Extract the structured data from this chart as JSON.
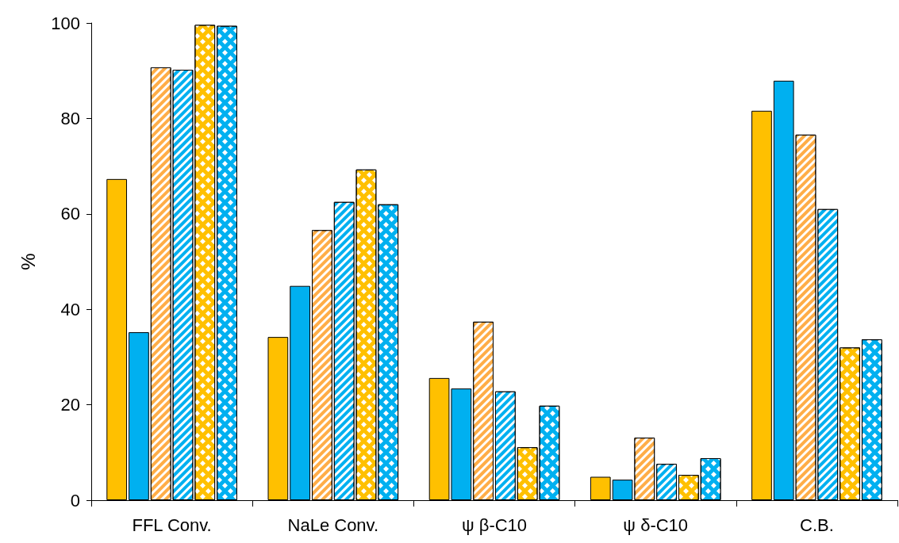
{
  "chart_data": {
    "type": "bar",
    "ylabel": "%",
    "categories": [
      "FFL Conv.",
      "NaLe Conv.",
      "ψ β-C10",
      "ψ δ-C10",
      "C.B."
    ],
    "ylim": [
      0,
      100
    ],
    "yticks": [
      0,
      20,
      40,
      60,
      80,
      100
    ],
    "grid": false,
    "series": [
      {
        "color": "#ffc000",
        "values": [
          67.3,
          34.2,
          25.6,
          4.9,
          81.6
        ]
      },
      {
        "color": "#00b0f0",
        "values": [
          35.2,
          44.9,
          23.4,
          4.3,
          87.9
        ]
      },
      {
        "color": "#ffad47",
        "values": [
          90.7,
          56.6,
          37.4,
          13.1,
          76.6
        ]
      },
      {
        "color": "#00b0f0",
        "values": [
          90.2,
          62.5,
          22.8,
          7.6,
          61.0
        ]
      },
      {
        "color": "#ffc000",
        "values": [
          99.6,
          69.3,
          11.1,
          5.3,
          32.0
        ]
      },
      {
        "color": "#00b0f0",
        "values": [
          99.4,
          62.0,
          19.8,
          8.8,
          33.7
        ]
      }
    ]
  }
}
